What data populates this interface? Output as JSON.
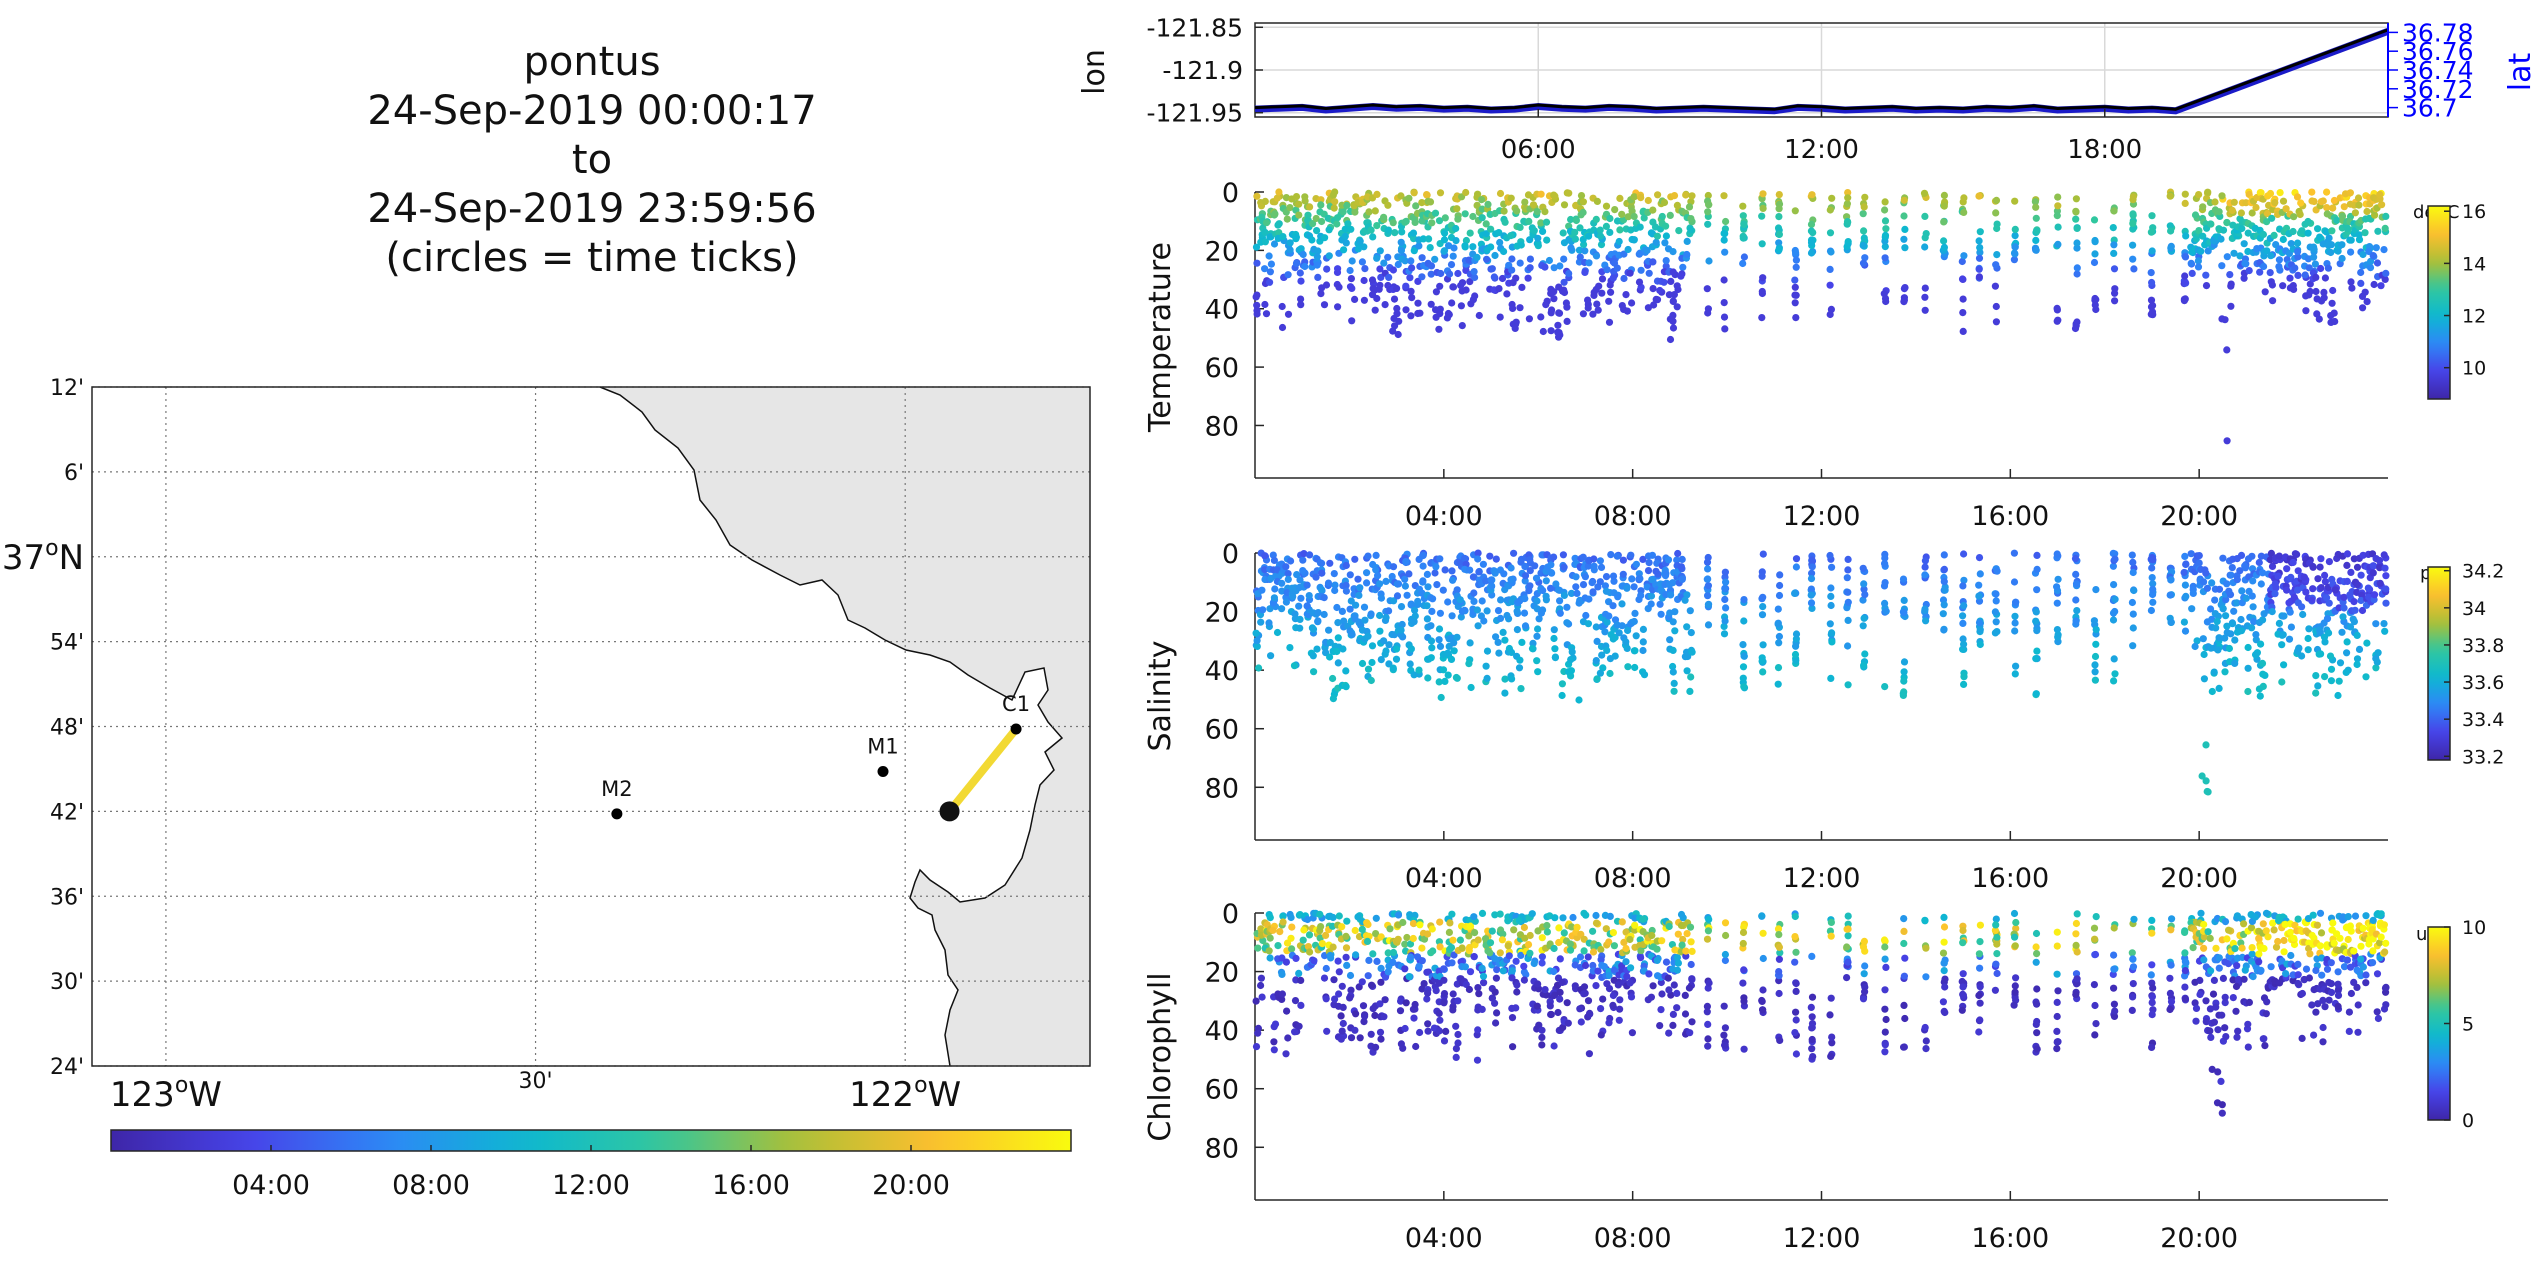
{
  "title_lines": [
    "pontus",
    "24-Sep-2019 00:00:17",
    "to",
    "24-Sep-2019 23:59:56",
    "(circles = time ticks)"
  ],
  "colors": {
    "parula": [
      "#3e26a8",
      "#4743e8",
      "#2e87f7",
      "#0db8d1",
      "#31c79e",
      "#aebf35",
      "#fcbf2f",
      "#f9fb0e"
    ],
    "track": "#f2d934",
    "land": "#e6e6e6",
    "lat_axis": "#0000ff"
  },
  "chart_data": [
    {
      "type": "line",
      "name": "lon-lat",
      "ylabel": "lon",
      "ylabel_right": "lat",
      "yticks": [
        "-121.85",
        "-121.9",
        "-121.95"
      ],
      "yticks_values": [
        -121.85,
        -121.9,
        -121.95
      ],
      "ylim": [
        -121.955,
        -121.845
      ],
      "right_yticks": [
        "36.78",
        "36.76",
        "36.74",
        "36.72",
        "36.7"
      ],
      "right_yticks_values": [
        36.78,
        36.76,
        36.74,
        36.72,
        36.7
      ],
      "right_ylim": [
        36.69,
        36.79
      ],
      "xlim": [
        0,
        24
      ],
      "xticks": [
        "06:00",
        "12:00",
        "18:00"
      ],
      "xticks_values": [
        6,
        12,
        18
      ],
      "grid": true,
      "series": [
        {
          "values_x": [
            0,
            0.5,
            1,
            1.5,
            2,
            2.5,
            3,
            3.5,
            4,
            4.5,
            5,
            5.5,
            6,
            6.5,
            7,
            7.5,
            8,
            8.5,
            9,
            9.5,
            10,
            10.5,
            11,
            11.5,
            12,
            12.5,
            13,
            13.5,
            14,
            14.5,
            15,
            15.5,
            16,
            16.5,
            17,
            17.5,
            18,
            18.5,
            19,
            19.5,
            24
          ],
          "values_y": [
            -121.944,
            -121.943,
            -121.942,
            -121.945,
            -121.943,
            -121.941,
            -121.943,
            -121.942,
            -121.944,
            -121.943,
            -121.945,
            -121.944,
            -121.941,
            -121.943,
            -121.944,
            -121.942,
            -121.943,
            -121.945,
            -121.944,
            -121.943,
            -121.944,
            -121.945,
            -121.946,
            -121.942,
            -121.943,
            -121.945,
            -121.944,
            -121.943,
            -121.945,
            -121.944,
            -121.945,
            -121.943,
            -121.944,
            -121.942,
            -121.945,
            -121.944,
            -121.943,
            -121.945,
            -121.944,
            -121.946,
            -121.853
          ]
        }
      ]
    },
    {
      "type": "scatter",
      "name": "Temperature",
      "ylabel": "Temperature",
      "yticks": [
        "0",
        "20",
        "40",
        "60",
        "80"
      ],
      "yticks_values": [
        0,
        20,
        40,
        60,
        80
      ],
      "ylim": [
        0,
        98
      ],
      "xlim": [
        0,
        24
      ],
      "xticks": [
        "04:00",
        "08:00",
        "12:00",
        "16:00",
        "20:00"
      ],
      "xticks_values": [
        4,
        8,
        12,
        16,
        20
      ],
      "colorbar": {
        "unit": "degC",
        "ticks": [
          "16",
          "14",
          "12",
          "10"
        ],
        "ticks_values": [
          16,
          14,
          12,
          10
        ],
        "range": [
          8.8,
          16.2
        ]
      },
      "value_range": [
        9.5,
        16
      ]
    },
    {
      "type": "scatter",
      "name": "Salinity",
      "ylabel": "Salinity",
      "yticks": [
        "0",
        "20",
        "40",
        "60",
        "80"
      ],
      "yticks_values": [
        0,
        20,
        40,
        60,
        80
      ],
      "ylim": [
        0,
        98
      ],
      "xlim": [
        0,
        24
      ],
      "xticks": [
        "04:00",
        "08:00",
        "12:00",
        "16:00",
        "20:00"
      ],
      "xticks_values": [
        4,
        8,
        12,
        16,
        20
      ],
      "colorbar": {
        "unit": "psu",
        "ticks": [
          "34.2",
          "34",
          "33.8",
          "33.6",
          "33.4",
          "33.2"
        ],
        "ticks_values": [
          34.2,
          34,
          33.8,
          33.6,
          33.4,
          33.2
        ],
        "range": [
          33.18,
          34.22
        ]
      },
      "value_range": [
        33.3,
        33.7
      ]
    },
    {
      "type": "scatter",
      "name": "Chlorophyll",
      "ylabel": "Chlorophyll",
      "yticks": [
        "0",
        "20",
        "40",
        "60",
        "80"
      ],
      "yticks_values": [
        0,
        20,
        40,
        60,
        80
      ],
      "ylim": [
        0,
        98
      ],
      "xlim": [
        0,
        24
      ],
      "xticks": [
        "04:00",
        "08:00",
        "12:00",
        "16:00",
        "20:00"
      ],
      "xticks_values": [
        4,
        8,
        12,
        16,
        20
      ],
      "colorbar": {
        "unit": "ug/l",
        "ticks": [
          "10",
          "5",
          "0"
        ],
        "ticks_values": [
          10,
          5,
          0
        ],
        "range": [
          0,
          10
        ]
      },
      "value_range": [
        0,
        10
      ]
    },
    {
      "type": "scatter",
      "name": "map",
      "lon_range": [
        -123.1,
        -121.75
      ],
      "lat_range": [
        36.4,
        37.2
      ],
      "lat_ticks": [
        "12'",
        "6'",
        "37°N",
        "54'",
        "48'",
        "42'",
        "36'",
        "30'",
        "24'"
      ],
      "lat_ticks_values": [
        37.2,
        37.1,
        37.0,
        36.9,
        36.8,
        36.7,
        36.6,
        36.5,
        36.4
      ],
      "lon_ticks": [
        "123°W",
        "30'",
        "122°W"
      ],
      "lon_ticks_values": [
        -123.0,
        -122.5,
        -122.0
      ],
      "moorings": [
        {
          "label": "M2",
          "lon": -122.39,
          "lat": 36.697
        },
        {
          "label": "M1",
          "lon": -122.03,
          "lat": 36.747
        },
        {
          "label": "C1",
          "lon": -121.85,
          "lat": 36.797
        }
      ],
      "track": {
        "start": {
          "lon": -121.94,
          "lat": 36.7
        },
        "end": {
          "lon": -121.85,
          "lat": 36.797
        }
      },
      "time_colorbar": {
        "ticks": [
          "04:00",
          "08:00",
          "12:00",
          "16:00",
          "20:00"
        ],
        "ticks_values": [
          4,
          8,
          12,
          16,
          20
        ],
        "range": [
          0,
          24
        ]
      }
    }
  ]
}
